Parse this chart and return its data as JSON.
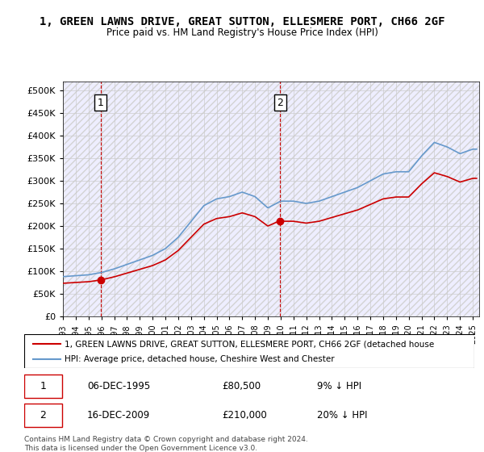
{
  "title": "1, GREEN LAWNS DRIVE, GREAT SUTTON, ELLESMERE PORT, CH66 2GF",
  "subtitle": "Price paid vs. HM Land Registry's House Price Index (HPI)",
  "ylabel_ticks": [
    "£0",
    "£50K",
    "£100K",
    "£150K",
    "£200K",
    "£250K",
    "£300K",
    "£350K",
    "£400K",
    "£450K",
    "£500K"
  ],
  "ytick_values": [
    0,
    50000,
    100000,
    150000,
    200000,
    250000,
    300000,
    350000,
    400000,
    450000,
    500000
  ],
  "ylim": [
    0,
    520000
  ],
  "xlim_start": 1993.0,
  "xlim_end": 2025.5,
  "purchase1_date": 1995.93,
  "purchase1_price": 80500,
  "purchase1_label": "1",
  "purchase1_date_str": "06-DEC-1995",
  "purchase1_price_str": "£80,500",
  "purchase1_hpi_str": "9% ↓ HPI",
  "purchase2_date": 2009.96,
  "purchase2_price": 210000,
  "purchase2_label": "2",
  "purchase2_date_str": "16-DEC-2009",
  "purchase2_price_str": "£210,000",
  "purchase2_hpi_str": "20% ↓ HPI",
  "vline_color": "#cc0000",
  "vline_style": "--",
  "dot_color": "#cc0000",
  "hpi_line_color": "#6699cc",
  "price_line_color": "#cc0000",
  "legend_line1": "1, GREEN LAWNS DRIVE, GREAT SUTTON, ELLESMERE PORT, CH66 2GF (detached house",
  "legend_line2": "HPI: Average price, detached house, Cheshire West and Chester",
  "footer": "Contains HM Land Registry data © Crown copyright and database right 2024.\nThis data is licensed under the Open Government Licence v3.0.",
  "bg_hatch_color": "#e8e8f0",
  "grid_color": "#cccccc",
  "plot_bg": "#f0f4ff"
}
